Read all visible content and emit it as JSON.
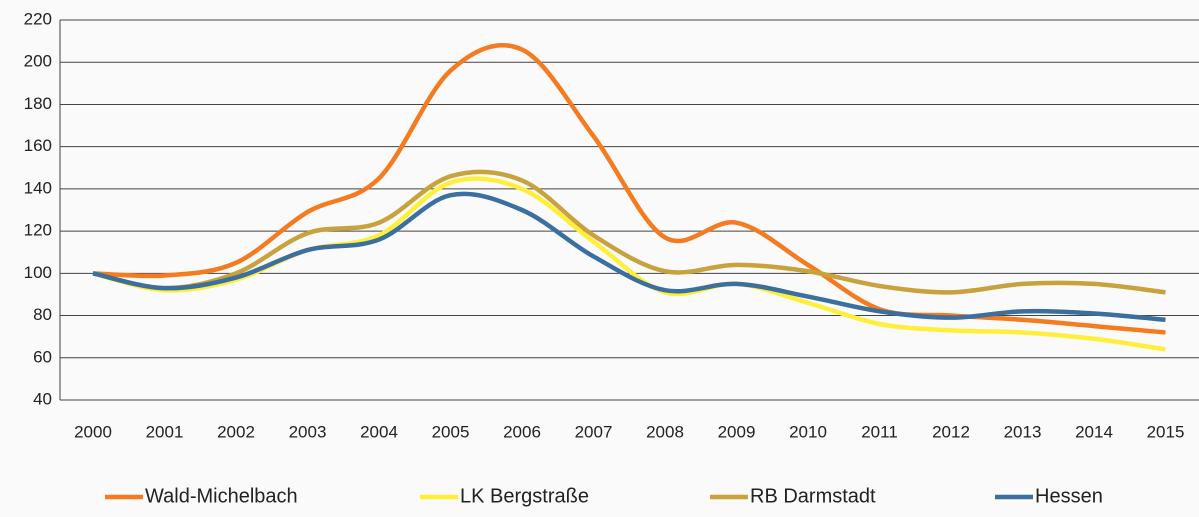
{
  "chart_data": {
    "type": "line",
    "categories": [
      "2000",
      "2001",
      "2002",
      "2003",
      "2004",
      "2005",
      "2006",
      "2007",
      "2008",
      "2009",
      "2010",
      "2011",
      "2012",
      "2013",
      "2014",
      "2015"
    ],
    "series": [
      {
        "name": "Wald-Michelbach",
        "color": "#f47b20",
        "values": [
          100,
          99,
          105,
          129,
          145,
          196,
          206,
          165,
          117,
          124,
          104,
          83,
          80,
          78,
          75,
          72
        ]
      },
      {
        "name": "LK Bergstraße",
        "color": "#ffef3a",
        "values": [
          100,
          92,
          97,
          111,
          118,
          143,
          140,
          115,
          91,
          95,
          86,
          76,
          73,
          72,
          69,
          64
        ]
      },
      {
        "name": "RB Darmstadt",
        "color": "#c8a23c",
        "values": [
          100,
          93,
          100,
          119,
          124,
          146,
          144,
          118,
          101,
          104,
          101,
          94,
          91,
          95,
          95,
          91
        ]
      },
      {
        "name": "Hessen",
        "color": "#3a6fa0",
        "values": [
          100,
          93,
          98,
          111,
          116,
          137,
          130,
          108,
          92,
          95,
          89,
          82,
          79,
          82,
          81,
          78
        ]
      }
    ],
    "ylim": [
      40,
      220
    ],
    "yticks": [
      40,
      60,
      80,
      100,
      120,
      140,
      160,
      180,
      200,
      220
    ],
    "grid": true
  }
}
